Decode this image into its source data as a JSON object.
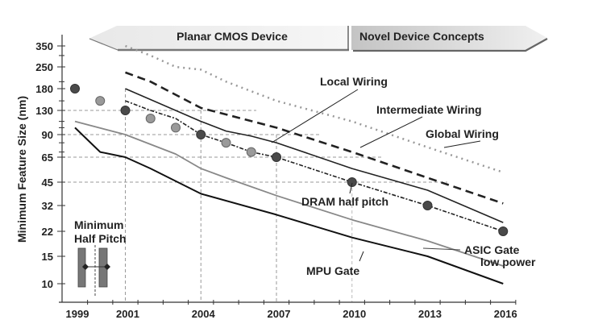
{
  "chart_data": {
    "type": "line",
    "title": "",
    "xlabel": "",
    "ylabel": "Minimum Feature Size (nm)",
    "y_scale": "log",
    "ylim": [
      8,
      420
    ],
    "xlim": [
      1998.5,
      2016.5
    ],
    "x_tick_labels": [
      "1999",
      "2001",
      "2004",
      "2007",
      "2010",
      "2013",
      "2016"
    ],
    "x_tick_values": [
      1999,
      2001,
      2004,
      2007,
      2010,
      2013,
      2016
    ],
    "y_tick_labels": [
      "350",
      "250",
      "180",
      "130",
      "90",
      "65",
      "45",
      "32",
      "22",
      "15",
      "10"
    ],
    "y_tick_values": [
      350,
      250,
      180,
      130,
      90,
      65,
      45,
      32,
      22,
      15,
      10
    ],
    "grid": "partial dashed reference lines",
    "legend": "none (inline annotations)",
    "banners": [
      {
        "label": "Planar CMOS Device",
        "x_range": [
          2000.5,
          2010
        ]
      },
      {
        "label": "Novel Device Concepts",
        "x_range": [
          2010,
          2017.5
        ]
      }
    ],
    "series": [
      {
        "name": "Global Wiring",
        "style": "dotted-gray",
        "x": [
          2001,
          2002,
          2003,
          2004,
          2005,
          2007,
          2010,
          2013,
          2016
        ],
        "values": [
          350,
          300,
          250,
          240,
          200,
          150,
          110,
          75,
          52
        ]
      },
      {
        "name": "Intermediate Wiring",
        "style": "long-dash-black",
        "x": [
          2001,
          2002,
          2004,
          2007,
          2010,
          2013,
          2016
        ],
        "values": [
          230,
          200,
          135,
          100,
          70,
          48,
          33
        ]
      },
      {
        "name": "Local Wiring",
        "style": "solid-black",
        "x": [
          2001,
          2004,
          2005,
          2006,
          2007,
          2010,
          2013,
          2016
        ],
        "values": [
          180,
          110,
          95,
          88,
          80,
          55,
          40,
          25
        ]
      },
      {
        "name": "DRAM half pitch",
        "style": "dash-dot-black-markers",
        "x": [
          2001,
          2002,
          2003,
          2004,
          2005,
          2006,
          2007,
          2010,
          2013,
          2016
        ],
        "values": [
          150,
          130,
          115,
          90,
          80,
          70,
          65,
          45,
          32,
          22
        ]
      },
      {
        "name": "DRAM half pitch markers",
        "style": "markers",
        "x": [
          1999,
          2000,
          2001,
          2002,
          2003,
          2004,
          2005,
          2006,
          2007,
          2010,
          2013,
          2016
        ],
        "values": [
          180,
          150,
          130,
          115,
          100,
          90,
          80,
          70,
          65,
          45,
          32,
          22
        ],
        "marker_shade": [
          "dark",
          "light",
          "dark",
          "light",
          "light",
          "dark",
          "light",
          "light",
          "dark",
          "dark",
          "dark",
          "dark"
        ]
      },
      {
        "name": "ASIC Gate low power",
        "style": "solid-gray",
        "x": [
          1999,
          2001,
          2003,
          2004,
          2005,
          2007,
          2010,
          2013,
          2016
        ],
        "values": [
          110,
          90,
          68,
          55,
          48,
          37,
          26,
          19,
          13
        ]
      },
      {
        "name": "MPU Gate",
        "style": "solid-black-thick",
        "x": [
          1999,
          2000,
          2001,
          2002,
          2004,
          2007,
          2010,
          2013,
          2016
        ],
        "values": [
          100,
          70,
          65,
          55,
          38,
          28,
          20,
          15,
          10
        ]
      }
    ],
    "reference_lines": {
      "horizontal": [
        130,
        90,
        65,
        45
      ],
      "vertical": [
        2001,
        2004,
        2007
      ]
    },
    "annotations": [
      {
        "text": "Local Wiring"
      },
      {
        "text": "Intermediate Wiring"
      },
      {
        "text": "Global Wiring"
      },
      {
        "text": "DRAM half pitch"
      },
      {
        "text": "ASIC Gate"
      },
      {
        "text": "low power"
      },
      {
        "text": "MPU Gate"
      },
      {
        "text": "Minimum"
      },
      {
        "text": "Half Pitch"
      }
    ]
  }
}
